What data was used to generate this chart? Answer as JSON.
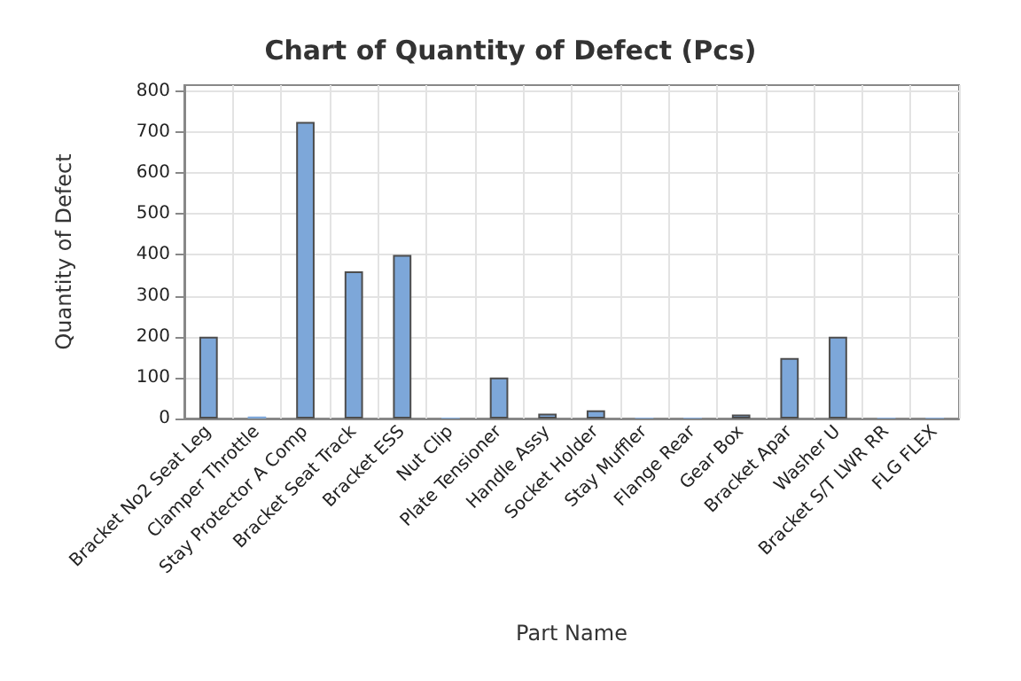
{
  "chart_data": {
    "type": "bar",
    "title": "Chart of Quantity of Defect (Pcs)",
    "xlabel": "Part Name",
    "ylabel": "Quantity of Defect",
    "categories": [
      "Bracket No2 Seat Leg",
      "Clamper Throttle",
      "Stay Protector A Comp",
      "Bracket Seat Track",
      "Bracket ESS",
      "Nut Clip",
      "Plate Tensioner",
      "Handle Assy",
      "Socket Holder",
      "Stay Muffler",
      "Flange Rear",
      "Gear Box",
      "Bracket Apar",
      "Washer U",
      "Bracket S/T LWR RR",
      "FLG FLEX"
    ],
    "values": [
      200,
      5,
      725,
      360,
      400,
      2,
      100,
      12,
      20,
      2,
      2,
      10,
      148,
      200,
      2,
      2
    ],
    "color": "#7da7d9",
    "ylim": [
      0,
      815
    ],
    "yticks": [
      0,
      100,
      200,
      300,
      400,
      500,
      600,
      700,
      800
    ],
    "grid": true
  }
}
